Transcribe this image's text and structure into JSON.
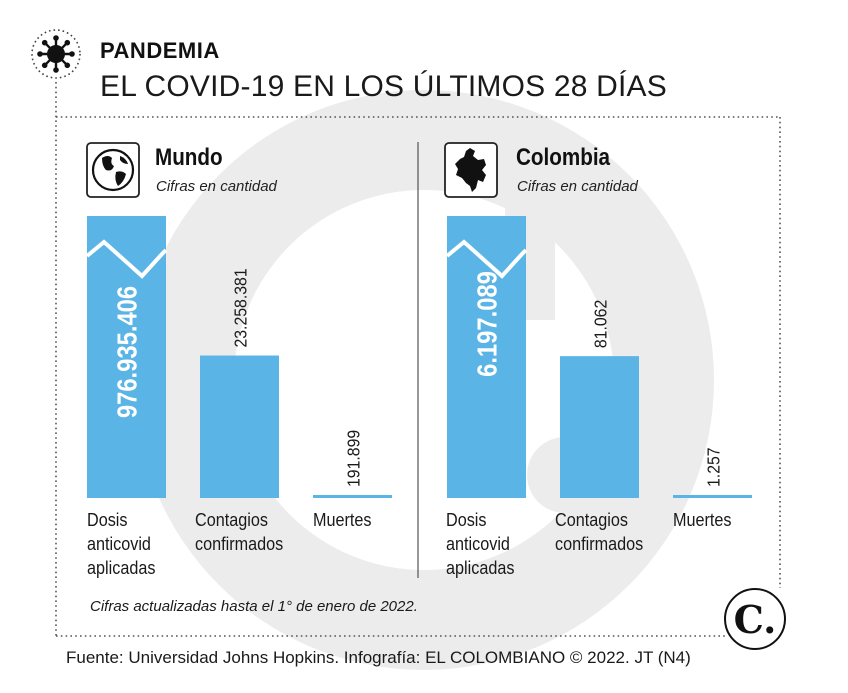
{
  "header": {
    "kicker": "PANDEMIA",
    "title": "EL COVID-19 EN LOS ÚLTIMOS 28 DÍAS"
  },
  "colors": {
    "bar": "#5ab4e5",
    "bar_dark": "#4a9fd6",
    "text": "#1a1a1a",
    "dots": "#555555",
    "watermark": "#e9e9e9"
  },
  "chart_data": [
    {
      "type": "bar",
      "title": "Mundo",
      "subtitle": "Cifras en cantidad",
      "icon": "globe-icon",
      "categories": [
        "Dosis anticovid aplicadas",
        "Contagios confirmados",
        "Muertes"
      ],
      "category_lines": [
        [
          "Dosis",
          "anticovid",
          "aplicadas"
        ],
        [
          "Contagios",
          "confirmados"
        ],
        [
          "Muertes"
        ]
      ],
      "values": [
        976935406,
        23258381,
        191899
      ],
      "value_labels": [
        "976.935.406",
        "23.258.381",
        "191.899"
      ],
      "broken_axis_first_bar": true,
      "grid": false
    },
    {
      "type": "bar",
      "title": "Colombia",
      "subtitle": "Cifras en cantidad",
      "icon": "colombia-map-icon",
      "categories": [
        "Dosis anticovid aplicadas",
        "Contagios confirmados",
        "Muertes"
      ],
      "category_lines": [
        [
          "Dosis",
          "anticovid",
          "aplicadas"
        ],
        [
          "Contagios",
          "confirmados"
        ],
        [
          "Muertes"
        ]
      ],
      "values": [
        6197089,
        81062,
        1257
      ],
      "value_labels": [
        "6.197.089",
        "81.062",
        "1.257"
      ],
      "broken_axis_first_bar": true,
      "grid": false
    }
  ],
  "footnote": "Cifras actualizadas hasta el 1° de enero de 2022.",
  "source": "Fuente: Universidad Johns Hopkins. Infografía: EL COLOMBIANO © 2022. JT (N4)",
  "logo": {
    "letter": "C.",
    "icon": "el-colombiano-logo"
  }
}
